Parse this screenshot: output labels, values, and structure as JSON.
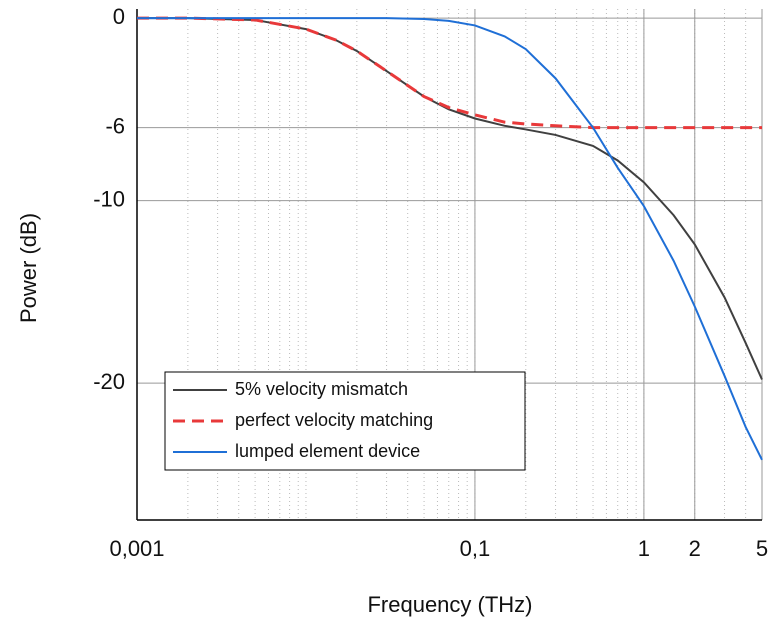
{
  "chart_data": {
    "type": "line",
    "x_label": "Frequency (THz)",
    "y_label": "Power (dB)",
    "x_scale": "log",
    "grid": true,
    "legend": "lower left",
    "x": [
      0.001,
      0.002,
      0.005,
      0.01,
      0.015,
      0.02,
      0.03,
      0.05,
      0.07,
      0.1,
      0.15,
      0.2,
      0.3,
      0.5,
      0.7,
      1,
      1.5,
      2,
      3,
      4,
      5
    ],
    "series": [
      {
        "name": "5% velocity mismatch",
        "color": "#404040",
        "line_style": "solid",
        "values": [
          0,
          0,
          -0.1,
          -0.6,
          -1.2,
          -1.8,
          -2.9,
          -4.3,
          -5.0,
          -5.5,
          -5.9,
          -6.1,
          -6.4,
          -7.0,
          -7.8,
          -9.0,
          -10.8,
          -12.4,
          -15.3,
          -17.8,
          -19.8
        ]
      },
      {
        "name": "perfect velocity matching",
        "color": "#e8393a",
        "line_style": "dashed",
        "values": [
          0,
          0,
          -0.1,
          -0.6,
          -1.2,
          -1.8,
          -2.9,
          -4.3,
          -4.9,
          -5.3,
          -5.7,
          -5.8,
          -5.9,
          -6.0,
          -6.0,
          -6.0,
          -6.0,
          -6.0,
          -6.0,
          -6.0,
          -6.0
        ]
      },
      {
        "name": "lumped element device",
        "color": "#1f6fd6",
        "line_style": "solid",
        "values": [
          0,
          0,
          0,
          0,
          0,
          0,
          0,
          -0.05,
          -0.15,
          -0.4,
          -1.0,
          -1.7,
          -3.3,
          -6.0,
          -8.2,
          -10.3,
          -13.3,
          -15.8,
          -19.6,
          -22.4,
          -24.2
        ]
      }
    ],
    "xlim": [
      0.001,
      5
    ],
    "ylim": [
      -27.5,
      0.5
    ],
    "xticks": [
      {
        "value": 0.001,
        "label": "0,001"
      },
      {
        "value": 0.1,
        "label": "0,1"
      },
      1,
      2,
      5
    ],
    "yticks": [
      0,
      -6,
      -10,
      -20
    ]
  }
}
